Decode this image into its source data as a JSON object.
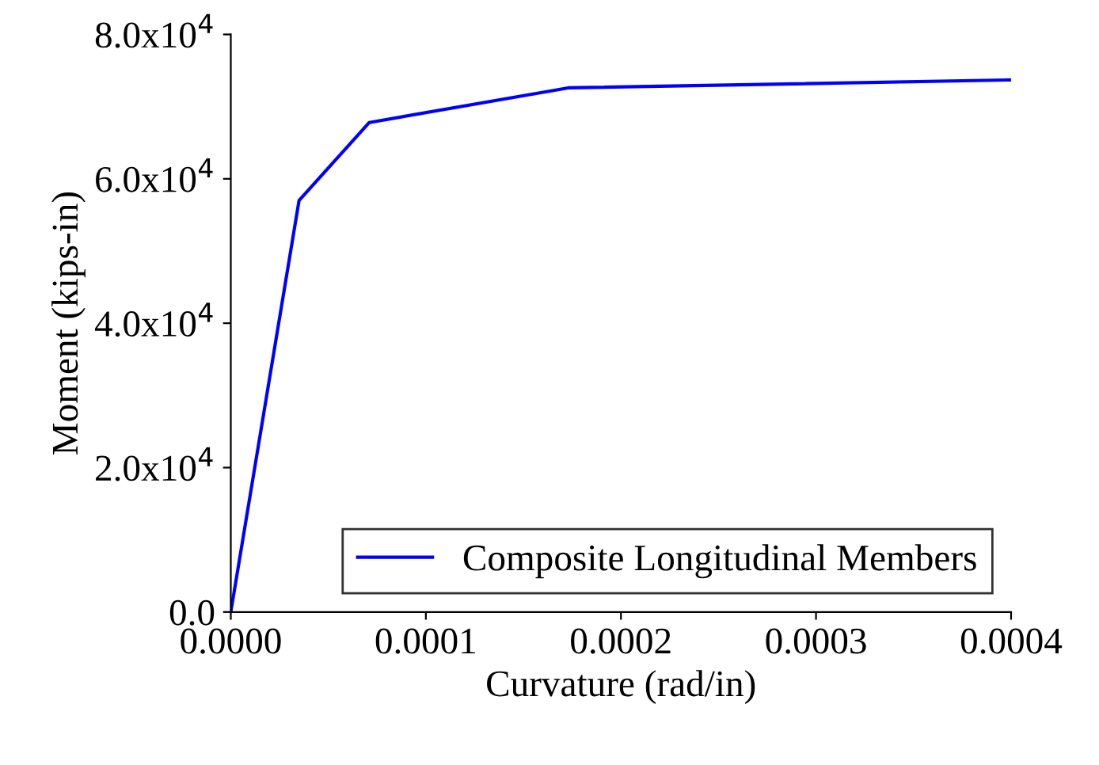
{
  "chart_data": {
    "type": "line",
    "xlabel": "Curvature (rad/in)",
    "ylabel": "Moment (kips-in)",
    "x": [
      0,
      3.5e-05,
      7.1e-05,
      0.000173,
      0.0004
    ],
    "series": [
      {
        "name": "Composite Longitudinal Members",
        "color": "#0000ff",
        "values": [
          0,
          57000,
          67800,
          72600,
          73700
        ]
      }
    ],
    "xlim": [
      0,
      0.0004
    ],
    "ylim": [
      0,
      80000
    ],
    "xticks": [
      {
        "value": 0,
        "label": "0.0000"
      },
      {
        "value": 0.0001,
        "label": "0.0001"
      },
      {
        "value": 0.0002,
        "label": "0.0002"
      },
      {
        "value": 0.0003,
        "label": "0.0003"
      },
      {
        "value": 0.0004,
        "label": "0.0004"
      }
    ],
    "yticks": [
      {
        "value": 0,
        "label": "0.0"
      },
      {
        "value": 20000,
        "label": "2.0x10$^{4}$"
      },
      {
        "value": 40000,
        "label": "4.0x10$^{4}$"
      },
      {
        "value": 60000,
        "label": "6.0x10$^{4}$"
      },
      {
        "value": 80000,
        "label": "8.0x10$^{4}$"
      }
    ],
    "grid": false,
    "legend": "lower right",
    "marker": "none",
    "line_style": "solid"
  }
}
